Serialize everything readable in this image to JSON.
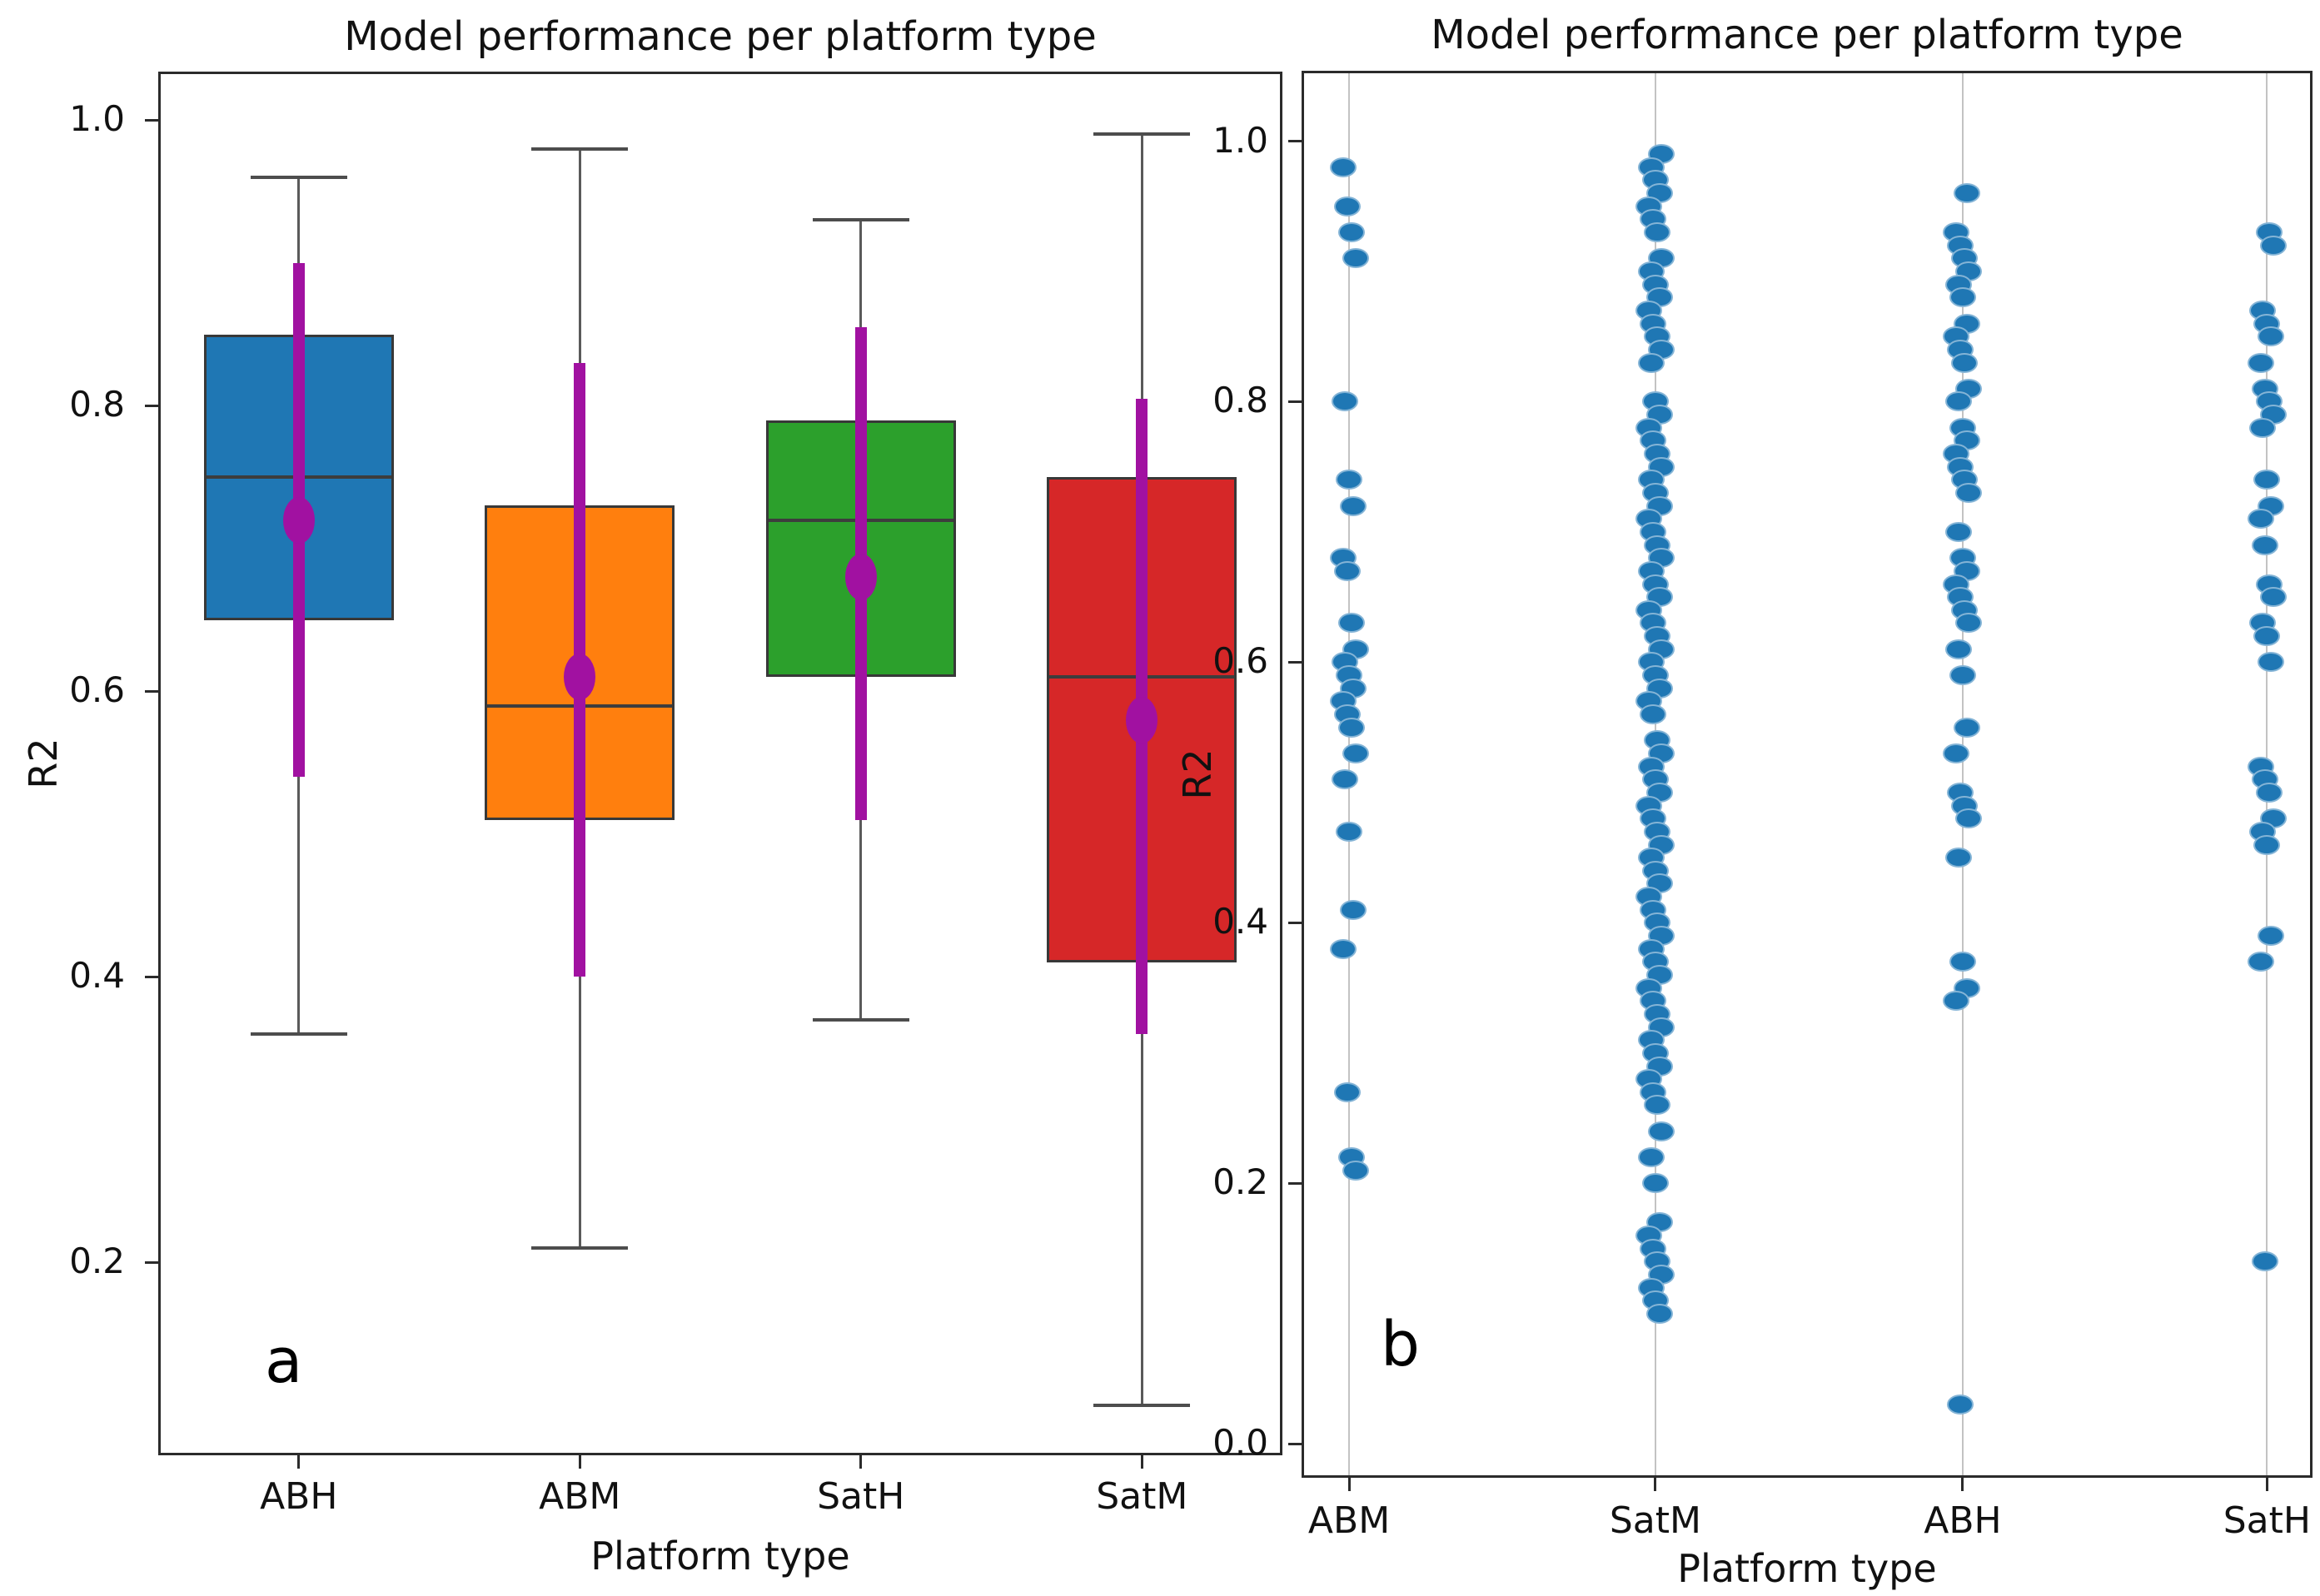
{
  "chart_data": [
    {
      "type": "box",
      "panel_label": "a",
      "title": "Model performance per platform type",
      "xlabel": "Platform type",
      "ylabel": "R2",
      "ylim": [
        0.065,
        1.034
      ],
      "yticks": [
        1.0,
        0.8,
        0.6,
        0.4,
        0.2
      ],
      "ytick_labels": [
        "1.0",
        "0.8",
        "0.6",
        "0.4",
        "0.2"
      ],
      "grid": false,
      "legend": "none",
      "categories": [
        "ABH",
        "ABM",
        "SatH",
        "SatM"
      ],
      "errorbar_color": "#a111a1",
      "boxes": [
        {
          "label": "ABH",
          "color": "#1f77b4",
          "whisker_low": 0.36,
          "q1": 0.65,
          "median": 0.75,
          "q3": 0.85,
          "whisker_high": 0.96,
          "mean": 0.72,
          "err_low": 0.54,
          "err_high": 0.9
        },
        {
          "label": "ABM",
          "color": "#ff7f0e",
          "whisker_low": 0.21,
          "q1": 0.51,
          "median": 0.59,
          "q3": 0.73,
          "whisker_high": 0.98,
          "mean": 0.61,
          "err_low": 0.4,
          "err_high": 0.83
        },
        {
          "label": "SatH",
          "color": "#2ca02c",
          "whisker_low": 0.37,
          "q1": 0.61,
          "median": 0.72,
          "q3": 0.79,
          "whisker_high": 0.93,
          "mean": 0.68,
          "err_low": 0.51,
          "err_high": 0.855
        },
        {
          "label": "SatM",
          "color": "#d62728",
          "whisker_low": 0.1,
          "q1": 0.41,
          "median": 0.61,
          "q3": 0.75,
          "whisker_high": 0.99,
          "mean": 0.58,
          "err_low": 0.36,
          "err_high": 0.805
        }
      ]
    },
    {
      "type": "strip",
      "panel_label": "b",
      "title": "Model performance per platform type",
      "xlabel": "Platform type",
      "ylabel": "R2",
      "ylim": [
        -0.026,
        1.054
      ],
      "yticks": [
        1.0,
        0.8,
        0.6,
        0.4,
        0.2,
        0.0
      ],
      "ytick_labels": [
        "1.0",
        "0.8",
        "0.6",
        "0.4",
        "0.2",
        "0.0"
      ],
      "grid": true,
      "legend": "none",
      "dot_color": "#1f77b4",
      "categories": [
        "ABM",
        "SatM",
        "ABH",
        "SatH"
      ],
      "series": [
        {
          "name": "ABM",
          "values": [
            0.98,
            0.95,
            0.93,
            0.91,
            0.8,
            0.74,
            0.72,
            0.68,
            0.67,
            0.63,
            0.61,
            0.6,
            0.59,
            0.58,
            0.57,
            0.56,
            0.55,
            0.53,
            0.51,
            0.47,
            0.41,
            0.38,
            0.27,
            0.22,
            0.21
          ]
        },
        {
          "name": "SatM",
          "values": [
            0.99,
            0.98,
            0.97,
            0.96,
            0.95,
            0.94,
            0.93,
            0.91,
            0.9,
            0.89,
            0.88,
            0.87,
            0.86,
            0.85,
            0.84,
            0.83,
            0.8,
            0.79,
            0.78,
            0.77,
            0.76,
            0.75,
            0.74,
            0.73,
            0.72,
            0.71,
            0.7,
            0.69,
            0.68,
            0.67,
            0.66,
            0.65,
            0.64,
            0.63,
            0.62,
            0.61,
            0.6,
            0.59,
            0.58,
            0.57,
            0.56,
            0.54,
            0.53,
            0.52,
            0.51,
            0.5,
            0.49,
            0.48,
            0.47,
            0.46,
            0.45,
            0.44,
            0.43,
            0.42,
            0.41,
            0.4,
            0.39,
            0.38,
            0.37,
            0.36,
            0.35,
            0.34,
            0.33,
            0.32,
            0.31,
            0.3,
            0.29,
            0.28,
            0.27,
            0.26,
            0.24,
            0.22,
            0.2,
            0.17,
            0.16,
            0.15,
            0.14,
            0.13,
            0.12,
            0.11,
            0.1
          ]
        },
        {
          "name": "ABH",
          "values": [
            0.96,
            0.93,
            0.92,
            0.91,
            0.9,
            0.89,
            0.88,
            0.86,
            0.85,
            0.84,
            0.83,
            0.81,
            0.8,
            0.78,
            0.77,
            0.76,
            0.75,
            0.74,
            0.73,
            0.7,
            0.68,
            0.67,
            0.66,
            0.65,
            0.64,
            0.63,
            0.61,
            0.59,
            0.55,
            0.53,
            0.5,
            0.49,
            0.48,
            0.45,
            0.37,
            0.35,
            0.34,
            0.03
          ]
        },
        {
          "name": "SatH",
          "values": [
            0.93,
            0.92,
            0.87,
            0.86,
            0.85,
            0.83,
            0.81,
            0.8,
            0.79,
            0.78,
            0.74,
            0.72,
            0.71,
            0.69,
            0.66,
            0.65,
            0.63,
            0.62,
            0.6,
            0.52,
            0.51,
            0.5,
            0.48,
            0.47,
            0.46,
            0.39,
            0.37,
            0.14
          ]
        }
      ]
    }
  ]
}
